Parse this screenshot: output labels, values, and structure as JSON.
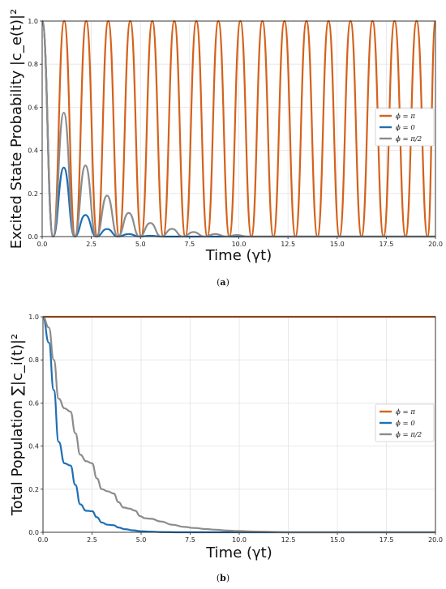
{
  "chart_data": [
    {
      "type": "line",
      "panel_label": "a",
      "xlabel": "Time (γt)",
      "ylabel": "Excited State Probability |c_e(t)|²",
      "xlim": [
        0,
        20
      ],
      "ylim": [
        0,
        1.0
      ],
      "xticks": [
        "0.0",
        "2.5",
        "5.0",
        "7.5",
        "10.0",
        "12.5",
        "15.0",
        "17.5",
        "20.0"
      ],
      "yticks": [
        "0.0",
        "0.2",
        "0.4",
        "0.6",
        "0.8",
        "1.0"
      ],
      "grid": true,
      "legend_position": "center-right",
      "legend": [
        "ϕ = π",
        "ϕ = 0",
        "ϕ = π/2"
      ],
      "series": [
        {
          "name": "ϕ = π",
          "color": "#d4621c",
          "x": [
            0,
            0.56,
            1.12,
            1.68,
            2.24,
            2.8,
            3.36,
            3.92,
            4.48,
            5.04,
            5.6,
            6.16,
            6.72,
            7.28,
            7.84,
            8.4,
            8.96,
            9.52,
            10.08,
            10.64,
            11.2,
            11.76,
            12.32,
            12.88,
            13.44,
            14.0,
            14.56,
            15.12,
            15.68,
            16.24,
            16.8,
            17.36,
            17.92,
            18.48,
            19.04,
            19.6,
            20.0
          ],
          "y": [
            1.0,
            0.0,
            1.0,
            0.0,
            1.0,
            0.0,
            1.0,
            0.0,
            1.0,
            0.0,
            1.0,
            0.0,
            1.0,
            0.0,
            1.0,
            0.0,
            1.0,
            0.0,
            1.0,
            0.0,
            1.0,
            0.0,
            1.0,
            0.0,
            1.0,
            0.0,
            1.0,
            0.0,
            1.0,
            0.0,
            1.0,
            0.0,
            1.0,
            0.0,
            1.0,
            0.0,
            1.0
          ]
        },
        {
          "name": "ϕ = 0",
          "color": "#1f6fb4",
          "x": [
            0,
            0.55,
            1.1,
            1.65,
            2.2,
            2.75,
            3.3,
            3.85,
            4.4,
            4.95,
            5.5,
            6.05,
            20.0
          ],
          "y": [
            1.0,
            0.0,
            0.32,
            0.0,
            0.1,
            0.0,
            0.035,
            0.0,
            0.012,
            0.0,
            0.004,
            0.0,
            0.0
          ]
        },
        {
          "name": "ϕ = π/2",
          "color": "#8c8c8c",
          "x": [
            0,
            0.55,
            1.1,
            1.65,
            2.2,
            2.75,
            3.3,
            3.85,
            4.4,
            4.95,
            5.5,
            6.05,
            6.6,
            7.15,
            7.7,
            8.25,
            8.8,
            9.35,
            9.9,
            10.45,
            11.0,
            20.0
          ],
          "y": [
            1.0,
            0.0,
            0.575,
            0.0,
            0.33,
            0.0,
            0.19,
            0.0,
            0.11,
            0.0,
            0.063,
            0.0,
            0.036,
            0.0,
            0.021,
            0.0,
            0.012,
            0.0,
            0.007,
            0.0,
            0.0,
            0.0
          ]
        }
      ]
    },
    {
      "type": "line",
      "panel_label": "b",
      "xlabel": "Time (γt)",
      "ylabel": "Total Population ∑|c_i(t)|²",
      "xlim": [
        0,
        20
      ],
      "ylim": [
        0,
        1.0
      ],
      "xticks": [
        "0.0",
        "2.5",
        "5.0",
        "7.5",
        "10.0",
        "12.5",
        "15.0",
        "17.5",
        "20.0"
      ],
      "yticks": [
        "0.0",
        "0.2",
        "0.4",
        "0.6",
        "0.8",
        "1.0"
      ],
      "grid": true,
      "legend_position": "center-right",
      "legend": [
        "ϕ = π",
        "ϕ = 0",
        "ϕ = π/2"
      ],
      "series": [
        {
          "name": "ϕ = π",
          "color": "#d4621c",
          "x": [
            0,
            5,
            10,
            15,
            20
          ],
          "y": [
            1.0,
            1.0,
            1.0,
            1.0,
            1.0
          ]
        },
        {
          "name": "ϕ = 0",
          "color": "#1f6fb4",
          "x": [
            0,
            0.3,
            0.55,
            0.8,
            1.1,
            1.4,
            1.65,
            1.9,
            2.2,
            2.5,
            2.75,
            3.0,
            3.3,
            3.6,
            3.85,
            4.2,
            4.6,
            5.0,
            5.5,
            6.0,
            7.0,
            20.0
          ],
          "y": [
            1.0,
            0.88,
            0.66,
            0.42,
            0.32,
            0.31,
            0.22,
            0.13,
            0.1,
            0.098,
            0.07,
            0.045,
            0.035,
            0.033,
            0.022,
            0.014,
            0.009,
            0.005,
            0.003,
            0.001,
            0.0,
            0.0
          ]
        },
        {
          "name": "ϕ = π/2",
          "color": "#8c8c8c",
          "x": [
            0,
            0.3,
            0.55,
            0.8,
            1.1,
            1.4,
            1.65,
            1.9,
            2.2,
            2.5,
            2.75,
            3.0,
            3.3,
            3.6,
            3.85,
            4.1,
            4.4,
            4.7,
            4.95,
            5.2,
            5.5,
            6.0,
            6.6,
            7.2,
            7.7,
            8.3,
            8.8,
            9.4,
            9.9,
            11.0,
            12.5,
            20.0
          ],
          "y": [
            1.0,
            0.95,
            0.8,
            0.62,
            0.575,
            0.56,
            0.46,
            0.36,
            0.33,
            0.32,
            0.25,
            0.2,
            0.19,
            0.18,
            0.14,
            0.115,
            0.11,
            0.1,
            0.075,
            0.065,
            0.063,
            0.05,
            0.035,
            0.025,
            0.02,
            0.015,
            0.012,
            0.008,
            0.006,
            0.003,
            0.0,
            0.0
          ]
        }
      ]
    }
  ]
}
